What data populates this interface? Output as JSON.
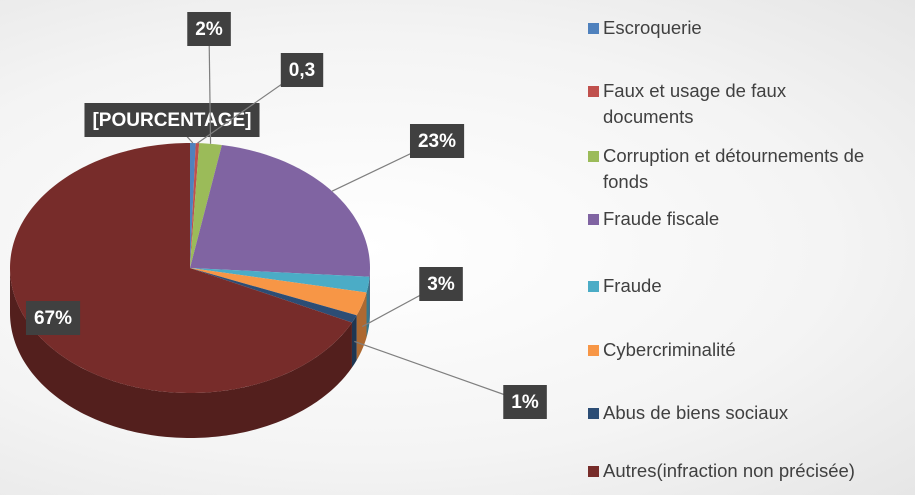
{
  "chart_data": {
    "type": "pie",
    "categories": [
      "Escroquerie",
      "Faux et usage de faux documents",
      "Corruption et détournements de fonds",
      "Fraude fiscale",
      "Fraude",
      "Cybercriminalité",
      "Abus de biens sociaux",
      "Autres(infraction non précisée)"
    ],
    "values": [
      0.5,
      0.3,
      2,
      23,
      2,
      3,
      1,
      67
    ],
    "value_labels": [
      "[POURCENTAGE]",
      "0,3",
      "2%",
      "23%",
      null,
      "3%",
      "1%",
      "67%"
    ],
    "colors": [
      "#4f81bd",
      "#c0504d",
      "#9bbb59",
      "#8064a2",
      "#4bacc6",
      "#f79646",
      "#2c4d75",
      "#772c2a"
    ]
  }
}
